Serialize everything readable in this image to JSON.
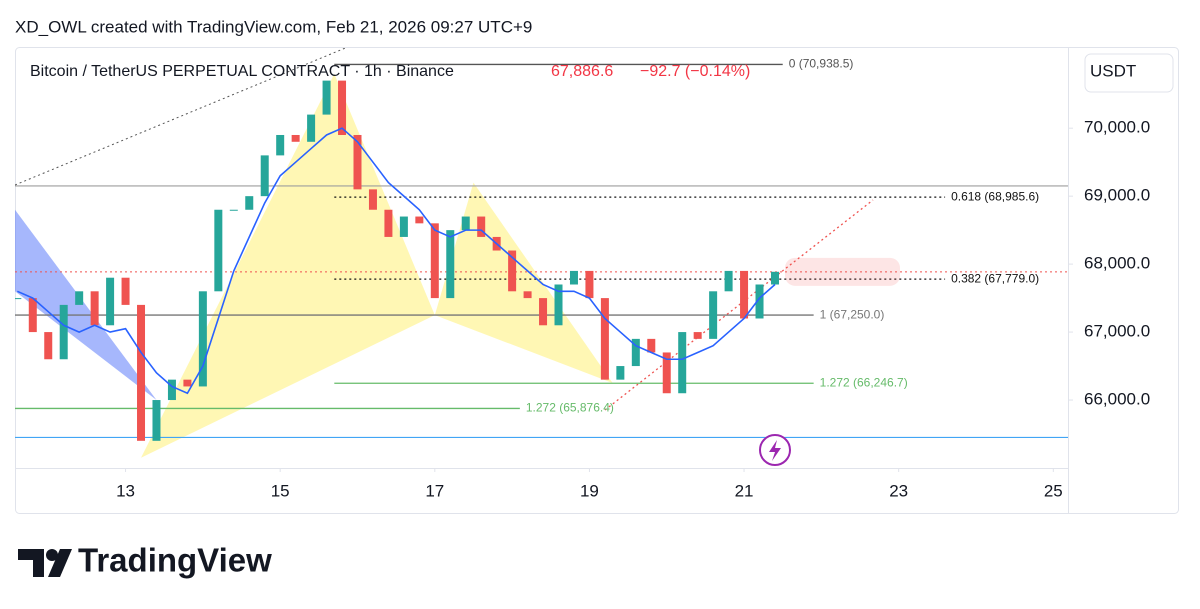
{
  "header": {
    "credit": "XD_OWL created with TradingView.com, Feb 21, 2026 09:27 UTC+9"
  },
  "chart_data": {
    "type": "candlestick",
    "title": "Bitcoin / TetherUS PERPETUAL CONTRACT · 1h · Binance",
    "last_price": {
      "value": 67886.6,
      "label": "67,886.6"
    },
    "change": "−92.7 (−0.14%)",
    "currency": "USDT",
    "up_color": "#26a69a",
    "down_color": "#ef5350",
    "x": [
      11.6,
      11.8,
      12.0,
      12.2,
      12.4,
      12.6,
      12.8,
      13.0,
      13.2,
      13.4,
      13.6,
      13.8,
      14.0,
      14.2,
      14.4,
      14.6,
      14.8,
      15.0,
      15.2,
      15.4,
      15.6,
      15.8,
      16.0,
      16.2,
      16.4,
      16.6,
      16.8,
      17.0,
      17.2,
      17.4,
      17.6,
      17.8,
      18.0,
      18.2,
      18.4,
      18.6,
      18.8,
      19.0,
      19.2,
      19.4,
      19.6,
      19.8,
      20.0,
      20.2,
      20.4,
      20.6,
      20.8,
      21.0,
      21.2,
      21.4
    ],
    "series": [
      {
        "name": "close",
        "values": [
          67500,
          67000,
          66600,
          67400,
          67600,
          67100,
          67800,
          67400,
          65400,
          66000,
          66300,
          66200,
          67600,
          68800,
          68800,
          69000,
          69600,
          69900,
          69800,
          70200,
          70700,
          69900,
          69100,
          68800,
          68400,
          68700,
          68600,
          67500,
          68500,
          68700,
          68400,
          68200,
          67600,
          67500,
          67100,
          67700,
          67900,
          67500,
          66300,
          66500,
          66900,
          66700,
          66100,
          67000,
          66900,
          67600,
          67900,
          67200,
          67700,
          67887
        ]
      },
      {
        "name": "ma",
        "color": "#2962ff",
        "values": [
          67600,
          67500,
          67300,
          67100,
          67000,
          67100,
          67000,
          67050,
          66700,
          66400,
          66200,
          66100,
          66500,
          67200,
          67900,
          68400,
          68900,
          69300,
          69500,
          69700,
          69900,
          70000,
          69800,
          69500,
          69200,
          69000,
          68800,
          68500,
          68400,
          68500,
          68500,
          68300,
          68100,
          67900,
          67700,
          67600,
          67600,
          67500,
          67200,
          67000,
          66800,
          66700,
          66600,
          66600,
          66700,
          66800,
          67000,
          67200,
          67500,
          67700
        ]
      }
    ],
    "xlim": [
      11.57,
      25.19
    ],
    "xticks": [
      13,
      15,
      17,
      19,
      21,
      23,
      25
    ],
    "ylim": [
      65000,
      71180
    ],
    "yticks": [
      {
        "value": 66000,
        "label": "66,000.0"
      },
      {
        "value": 67000,
        "label": "67,000.0"
      },
      {
        "value": 68000,
        "label": "68,000.0"
      },
      {
        "value": 69000,
        "label": "69,000.0"
      },
      {
        "value": 70000,
        "label": "70,000.0"
      }
    ],
    "levels": [
      {
        "label": "0 (70,938.5)",
        "value": 70938.5,
        "x": [
          15.7,
          21.5
        ],
        "color": "#555555",
        "dash": false
      },
      {
        "label": "0.618 (68,985.6)",
        "value": 68985.6,
        "x": [
          15.7,
          23.6
        ],
        "color": "#111111",
        "dash": true
      },
      {
        "label": "0.382 (67,779.0)",
        "value": 67779,
        "x": [
          15.7,
          23.6
        ],
        "color": "#111111",
        "dash": true
      },
      {
        "label": "1 (67,250.0)",
        "value": 67250,
        "x": [
          11.57,
          21.9
        ],
        "color": "#777777",
        "dash": false
      },
      {
        "label": "1.272 (66,246.7)",
        "value": 66246.7,
        "x": [
          15.7,
          21.9
        ],
        "color": "#66bb6a",
        "dash": false
      },
      {
        "label": "1.272 (65,876.4)",
        "value": 65876.4,
        "x": [
          11.57,
          18.1
        ],
        "color": "#66bb6a",
        "dash": false
      }
    ],
    "hlines": [
      {
        "value": 69150,
        "color": "#9e9e9e"
      },
      {
        "value": 65450,
        "color": "#42a5f5"
      }
    ],
    "patterns": [
      {
        "color": "#fff176",
        "points": [
          [
            13.2,
            65150
          ],
          [
            15.7,
            70800
          ],
          [
            17.0,
            67250
          ]
        ]
      },
      {
        "color": "#fff176",
        "points": [
          [
            17.0,
            67250
          ],
          [
            17.5,
            69200
          ],
          [
            19.3,
            66250
          ]
        ]
      },
      {
        "color": "#5c7cfa",
        "points": [
          [
            11.57,
            68800
          ],
          [
            13.4,
            66000
          ],
          [
            11.57,
            67600
          ]
        ]
      }
    ]
  },
  "logo": "TradingView"
}
